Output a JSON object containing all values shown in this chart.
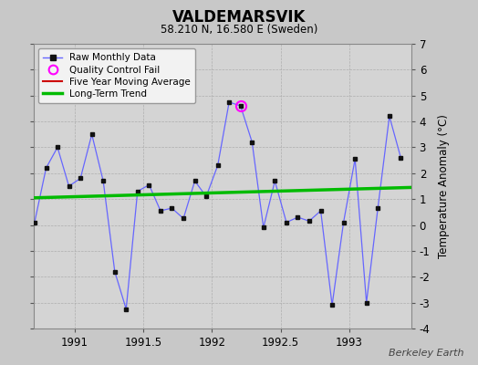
{
  "title": "VALDEMARSVIK",
  "subtitle": "58.210 N, 16.580 E (Sweden)",
  "ylabel": "Temperature Anomaly (°C)",
  "watermark": "Berkeley Earth",
  "ylim": [
    -4,
    7
  ],
  "yticks": [
    -4,
    -3,
    -2,
    -1,
    0,
    1,
    2,
    3,
    4,
    5,
    6,
    7
  ],
  "xlim": [
    1990.7,
    1993.45
  ],
  "xticks": [
    1991,
    1991.5,
    1992,
    1992.5,
    1993
  ],
  "bg_color": "#c8c8c8",
  "plot_bg_color": "#d4d4d4",
  "raw_x": [
    1990.708,
    1990.792,
    1990.875,
    1990.958,
    1991.042,
    1991.125,
    1991.208,
    1991.292,
    1991.375,
    1991.458,
    1991.542,
    1991.625,
    1991.708,
    1991.792,
    1991.875,
    1991.958,
    1992.042,
    1992.125,
    1992.208,
    1992.292,
    1992.375,
    1992.458,
    1992.542,
    1992.625,
    1992.708,
    1992.792,
    1992.875,
    1992.958,
    1993.042,
    1993.125,
    1993.208,
    1993.292,
    1993.375
  ],
  "raw_y": [
    0.1,
    2.2,
    3.0,
    1.5,
    1.8,
    3.5,
    1.7,
    -1.8,
    -3.25,
    1.3,
    1.55,
    0.55,
    0.65,
    0.25,
    1.7,
    1.1,
    2.3,
    4.75,
    4.6,
    3.2,
    -0.1,
    1.7,
    0.1,
    0.3,
    0.15,
    0.55,
    -3.1,
    0.1,
    2.55,
    -3.0,
    0.65,
    4.2,
    2.6
  ],
  "qc_fail_x": [
    1992.208
  ],
  "qc_fail_y": [
    4.6
  ],
  "trend_x": [
    1990.708,
    1993.45
  ],
  "trend_y": [
    1.05,
    1.45
  ],
  "raw_color": "#0000cc",
  "raw_line_color": "#6666ff",
  "qc_color": "#ff00ff",
  "trend_color": "#00bb00",
  "moving_avg_color": "#cc0000",
  "legend_bg": "#f2f2f2"
}
